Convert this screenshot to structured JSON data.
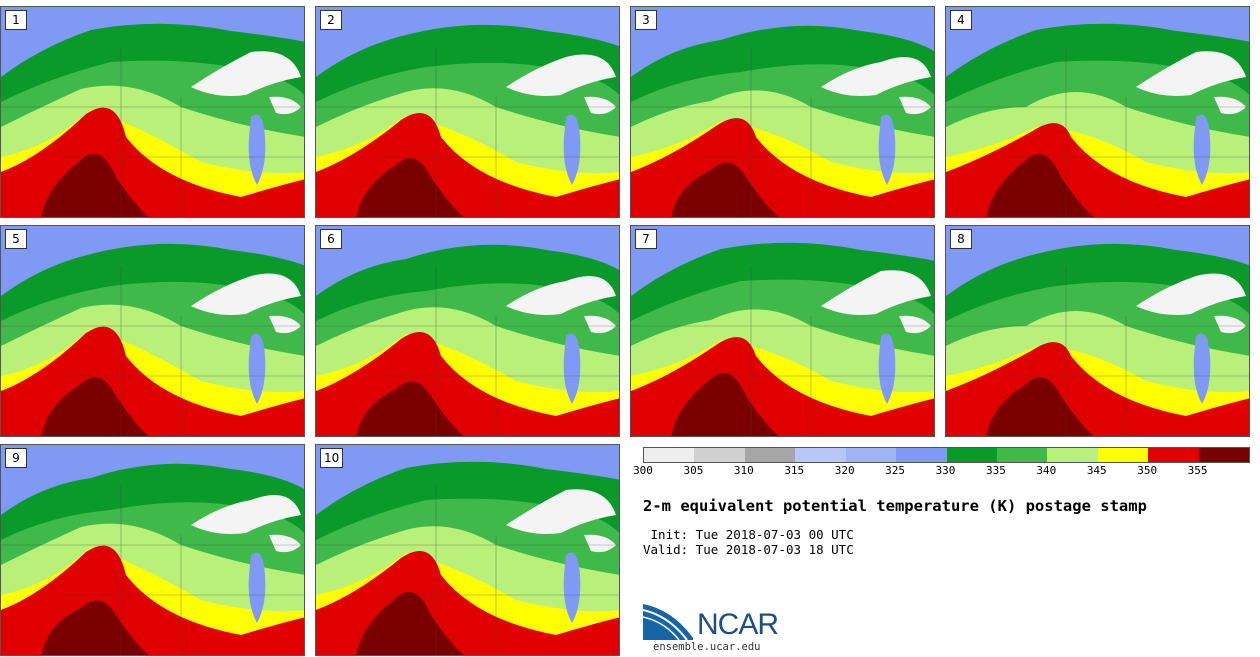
{
  "panels": [
    {
      "label": "1"
    },
    {
      "label": "2"
    },
    {
      "label": "3"
    },
    {
      "label": "4"
    },
    {
      "label": "5"
    },
    {
      "label": "6"
    },
    {
      "label": "7"
    },
    {
      "label": "8"
    },
    {
      "label": "9"
    },
    {
      "label": "10"
    }
  ],
  "colorbar": {
    "ticks": [
      "300",
      "305",
      "310",
      "315",
      "320",
      "325",
      "330",
      "335",
      "340",
      "345",
      "350",
      "355"
    ],
    "colors": [
      "#eeeeee",
      "#d0d0d0",
      "#a6a6a6",
      "#b7c7fa",
      "#9fb3f7",
      "#7f99f5",
      "#0a9a2a",
      "#3fb94a",
      "#b8f07a",
      "#ffff00",
      "#e00000",
      "#7a0000"
    ]
  },
  "map_colors": {
    "cool": "#7f99f5",
    "green_dark": "#0a9a2a",
    "green": "#3fb94a",
    "green_light": "#b8f07a",
    "yellow": "#ffff00",
    "red": "#e00000",
    "maroon": "#7a0000",
    "lake": "#f4f4f4"
  },
  "title": "2-m equivalent potential temperature (K) postage stamp",
  "init": " Init: Tue 2018-07-03 00 UTC",
  "valid": "Valid: Tue 2018-07-03 18 UTC",
  "logo": {
    "name": "NCAR",
    "url": "ensemble.ucar.edu"
  }
}
